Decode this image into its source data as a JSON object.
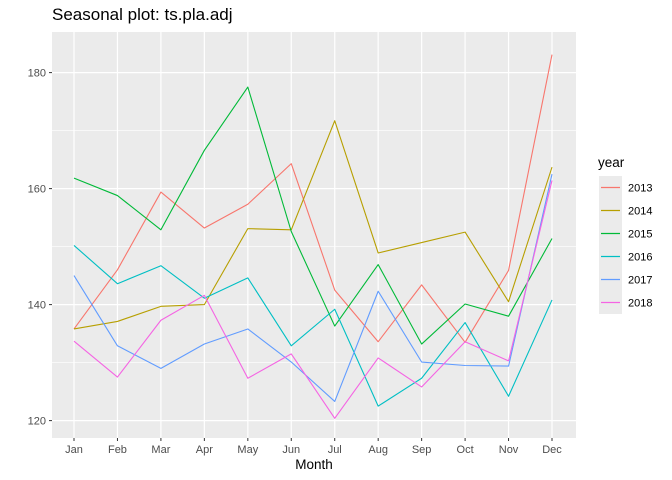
{
  "chart_data": {
    "type": "line",
    "title": "Seasonal plot: ts.pla.adj",
    "xlabel": "Month",
    "ylabel": "",
    "categories": [
      "Jan",
      "Feb",
      "Mar",
      "Apr",
      "May",
      "Jun",
      "Jul",
      "Aug",
      "Sep",
      "Oct",
      "Nov",
      "Dec"
    ],
    "ylim": [
      117,
      187
    ],
    "yticks": [
      120,
      140,
      160,
      180
    ],
    "grid": true,
    "legend_title": "year",
    "legend_position": "right",
    "series": [
      {
        "name": "2013",
        "color": "#F8766D",
        "values": [
          135.8,
          146.0,
          159.4,
          153.2,
          157.3,
          164.3,
          142.5,
          133.6,
          143.4,
          133.5,
          145.9,
          183.1
        ]
      },
      {
        "name": "2014",
        "color": "#B79F00",
        "values": [
          135.8,
          137.1,
          139.7,
          140.0,
          153.1,
          152.9,
          171.7,
          148.9,
          150.7,
          152.5,
          140.5,
          163.7
        ]
      },
      {
        "name": "2015",
        "color": "#00BA38",
        "values": [
          161.8,
          158.8,
          152.9,
          166.6,
          177.5,
          152.6,
          136.3,
          146.9,
          133.2,
          140.1,
          138.0,
          151.4
        ]
      },
      {
        "name": "2016",
        "color": "#00BFC4",
        "values": [
          150.2,
          143.6,
          146.7,
          141.1,
          144.6,
          132.9,
          139.2,
          122.5,
          127.3,
          136.9,
          124.2,
          140.8
        ]
      },
      {
        "name": "2017",
        "color": "#619CFF",
        "values": [
          145.0,
          132.9,
          129.0,
          133.2,
          135.8,
          130.1,
          123.3,
          142.3,
          130.1,
          129.5,
          129.4,
          162.5
        ]
      },
      {
        "name": "2018",
        "color": "#F564E3",
        "values": [
          133.7,
          127.5,
          137.3,
          141.6,
          127.3,
          131.5,
          120.4,
          130.8,
          125.8,
          133.6,
          130.3,
          161.4
        ]
      }
    ]
  }
}
